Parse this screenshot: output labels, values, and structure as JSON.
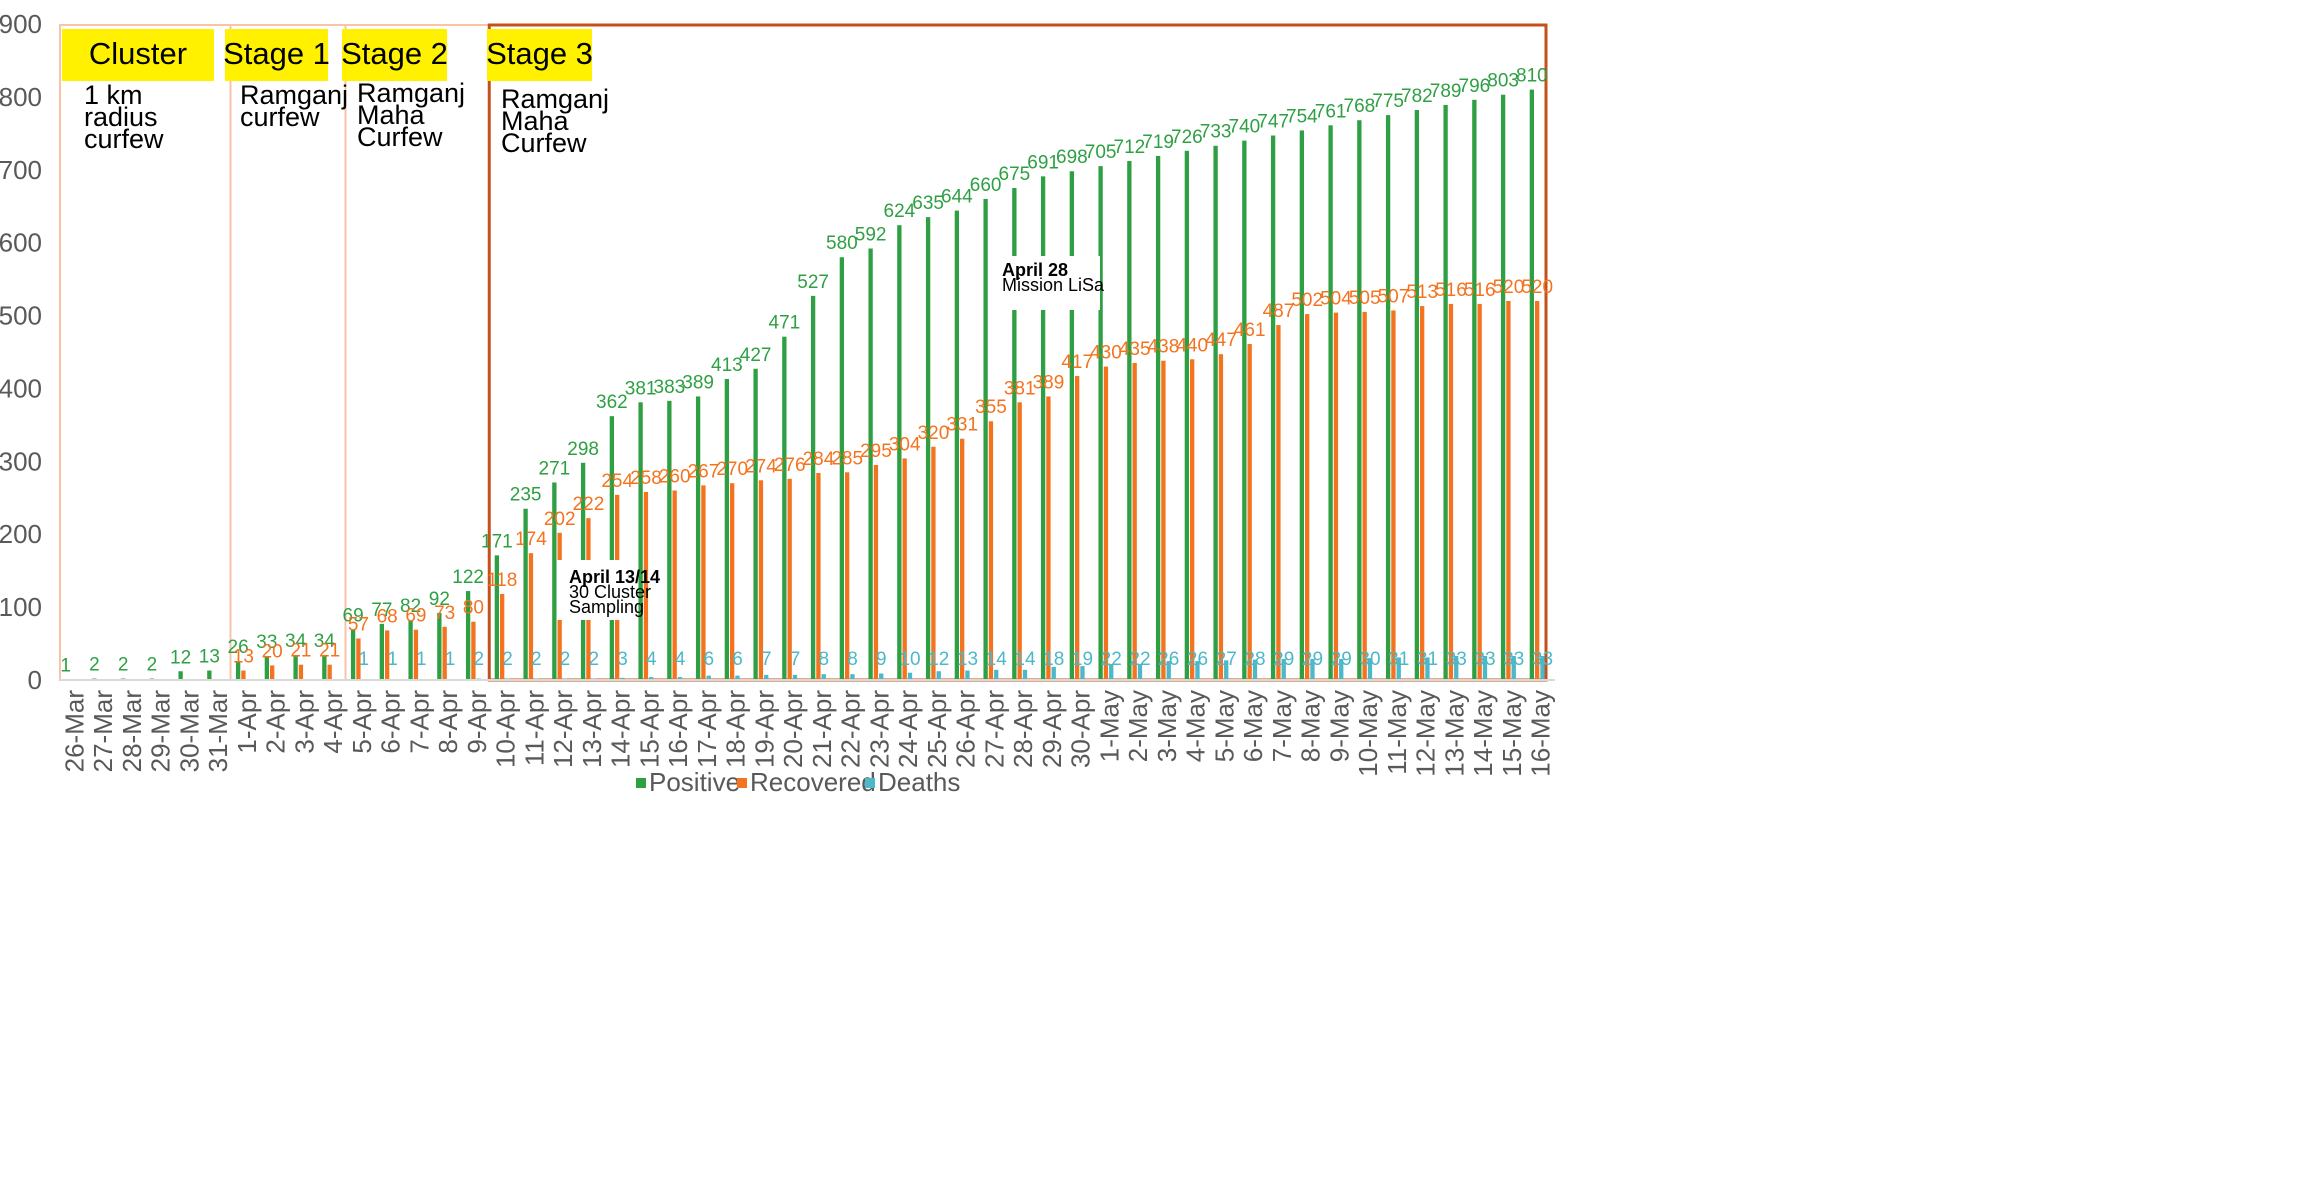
{
  "chart_data": {
    "type": "bar",
    "title": "",
    "xlabel": "",
    "ylabel": "",
    "ylim": [
      0,
      900
    ],
    "yticks": [
      0,
      100,
      200,
      300,
      400,
      500,
      600,
      700,
      800,
      900
    ],
    "grid": false,
    "legend_position": "bottom-center",
    "categories": [
      "26-Mar",
      "27-Mar",
      "28-Mar",
      "29-Mar",
      "30-Mar",
      "31-Mar",
      "1-Apr",
      "2-Apr",
      "3-Apr",
      "4-Apr",
      "5-Apr",
      "6-Apr",
      "7-Apr",
      "8-Apr",
      "9-Apr",
      "10-Apr",
      "11-Apr",
      "12-Apr",
      "13-Apr",
      "14-Apr",
      "15-Apr",
      "16-Apr",
      "17-Apr",
      "18-Apr",
      "19-Apr",
      "20-Apr",
      "21-Apr",
      "22-Apr",
      "23-Apr",
      "24-Apr",
      "25-Apr",
      "26-Apr",
      "27-Apr",
      "28-Apr",
      "29-Apr",
      "30-Apr",
      "1-May",
      "2-May",
      "3-May",
      "4-May",
      "5-May",
      "6-May",
      "7-May",
      "8-May",
      "9-May",
      "10-May",
      "11-May",
      "12-May",
      "13-May",
      "14-May",
      "15-May",
      "16-May"
    ],
    "series": [
      {
        "name": "Positive",
        "color": "#2ea043",
        "values": [
          1,
          2,
          2,
          2,
          12,
          13,
          26,
          33,
          34,
          34,
          69,
          77,
          82,
          92,
          122,
          171,
          235,
          271,
          298,
          362,
          381,
          383,
          389,
          413,
          427,
          471,
          527,
          580,
          592,
          624,
          635,
          644,
          660,
          675,
          691,
          698,
          705,
          712,
          719,
          726,
          733,
          740,
          747,
          754,
          761,
          768,
          775,
          782,
          789,
          796,
          803,
          810
        ]
      },
      {
        "name": "Recovered",
        "color": "#f4731f",
        "values": [
          null,
          null,
          null,
          null,
          null,
          null,
          13,
          20,
          21,
          21,
          57,
          68,
          69,
          73,
          80,
          118,
          174,
          202,
          222,
          254,
          258,
          260,
          267,
          270,
          274,
          276,
          284,
          285,
          295,
          304,
          320,
          331,
          355,
          381,
          389,
          417,
          430,
          435,
          438,
          440,
          447,
          461,
          487,
          502,
          504,
          505,
          507,
          513,
          516,
          516,
          520,
          520
        ]
      },
      {
        "name": "Deaths",
        "color": "#4cb8c8",
        "values": [
          null,
          null,
          null,
          null,
          null,
          null,
          null,
          null,
          null,
          null,
          1,
          1,
          1,
          1,
          2,
          2,
          2,
          2,
          2,
          3,
          4,
          4,
          6,
          6,
          7,
          7,
          8,
          8,
          9,
          10,
          12,
          13,
          14,
          14,
          18,
          19,
          22,
          22,
          26,
          26,
          27,
          28,
          29,
          29,
          29,
          30,
          31,
          31,
          33,
          33,
          33,
          33
        ]
      }
    ],
    "stages": [
      {
        "title": "Cluster",
        "lines": [
          "1 km",
          "radius",
          "curfew"
        ],
        "start": "26-Mar",
        "end": "31-Mar"
      },
      {
        "title": "Stage 1",
        "lines": [
          "Ramganj",
          "curfew"
        ],
        "start": "1-Apr",
        "end": "4-Apr"
      },
      {
        "title": "Stage 2",
        "lines": [
          "Ramganj",
          "Maha",
          "Curfew"
        ],
        "start": "5-Apr",
        "end": "9-Apr"
      },
      {
        "title": "Stage 3",
        "lines": [
          "Ramganj",
          "Maha",
          "Curfew"
        ],
        "start": "10-Apr",
        "end": "16-May"
      }
    ],
    "annotations": [
      {
        "title": "April 13/14",
        "lines": [
          "30 Cluster",
          "Sampling"
        ]
      },
      {
        "title": "April 28",
        "lines": [
          "Mission LiSa"
        ]
      }
    ]
  },
  "colors": {
    "stage_box_light": "#f8c4a8",
    "stage_box_dark": "#c4501a",
    "stage_label_bg": "#fff100",
    "axis": "#d9d9d9"
  }
}
